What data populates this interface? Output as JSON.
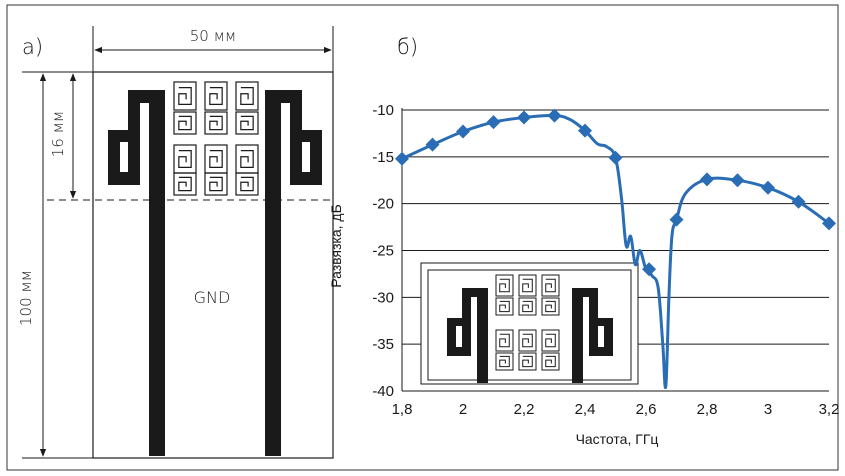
{
  "panel_a": {
    "label": "а)",
    "width_label": "50 мм",
    "height_label": "100 мм",
    "slot_label": "16 мм",
    "gnd_label": "GND"
  },
  "panel_b": {
    "label": "б)"
  },
  "colors": {
    "curve": "#2a6db5",
    "metal": "#1a1a1a",
    "grid": "#1a1a1a"
  },
  "chart_data": {
    "type": "line",
    "xlabel": "Частота, ГГц",
    "ylabel": "Развязка, дБ",
    "xlim": [
      1.8,
      3.2
    ],
    "ylim": [
      -40,
      -10
    ],
    "x_ticks": [
      "1,8",
      "2",
      "2,2",
      "2,4",
      "2,6",
      "2,8",
      "3",
      "3,2"
    ],
    "y_ticks": [
      "-10",
      "-15",
      "-20",
      "-25",
      "-30",
      "-35",
      "-40"
    ],
    "grid": "horizontal",
    "series": [
      {
        "markers": [
          [
            1.8,
            -15.2
          ],
          [
            1.9,
            -13.7
          ],
          [
            2.0,
            -12.3
          ],
          [
            2.1,
            -11.3
          ],
          [
            2.2,
            -10.8
          ],
          [
            2.3,
            -10.6
          ],
          [
            2.4,
            -12.2
          ],
          [
            2.5,
            -15.1
          ],
          [
            2.61,
            -27.0
          ],
          [
            2.7,
            -21.7
          ],
          [
            2.8,
            -17.4
          ],
          [
            2.9,
            -17.5
          ],
          [
            3.0,
            -18.3
          ],
          [
            3.1,
            -19.8
          ],
          [
            3.2,
            -22.1
          ]
        ],
        "curve": [
          [
            1.8,
            -15.2
          ],
          [
            1.9,
            -13.7
          ],
          [
            2.0,
            -12.3
          ],
          [
            2.1,
            -11.3
          ],
          [
            2.2,
            -10.8
          ],
          [
            2.3,
            -10.6
          ],
          [
            2.35,
            -11.0
          ],
          [
            2.4,
            -12.2
          ],
          [
            2.44,
            -13.6
          ],
          [
            2.47,
            -13.9
          ],
          [
            2.5,
            -15.1
          ],
          [
            2.52,
            -19.5
          ],
          [
            2.535,
            -24.5
          ],
          [
            2.55,
            -23.5
          ],
          [
            2.565,
            -26.5
          ],
          [
            2.58,
            -25.0
          ],
          [
            2.6,
            -27.0
          ],
          [
            2.62,
            -27.7
          ],
          [
            2.64,
            -29.0
          ],
          [
            2.655,
            -35.0
          ],
          [
            2.665,
            -39.5
          ],
          [
            2.675,
            -30.0
          ],
          [
            2.685,
            -23.5
          ],
          [
            2.7,
            -21.7
          ],
          [
            2.73,
            -18.9
          ],
          [
            2.8,
            -17.4
          ],
          [
            2.9,
            -17.5
          ],
          [
            3.0,
            -18.3
          ],
          [
            3.1,
            -19.8
          ],
          [
            3.2,
            -22.1
          ]
        ]
      }
    ]
  }
}
